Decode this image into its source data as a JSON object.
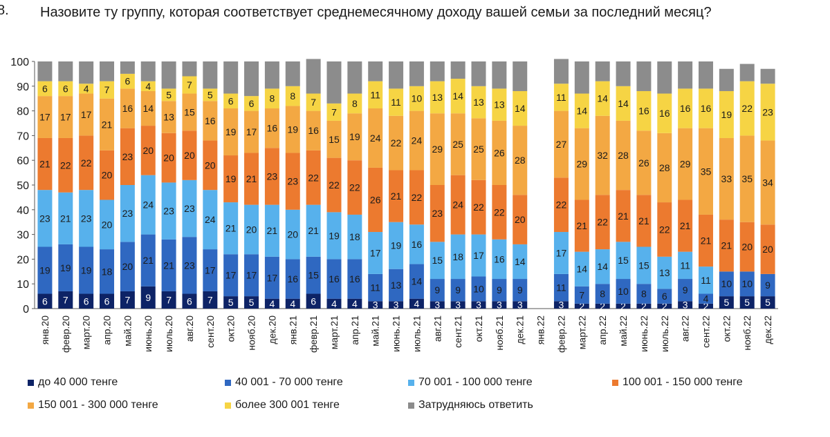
{
  "title": {
    "number": "8.",
    "text": "Назовите ту группу, которая соответствует среднемесячному доходу вашей семьи за последний месяц?"
  },
  "chart_data": {
    "type": "bar",
    "stacked": true,
    "ylim": [
      0,
      100
    ],
    "yticks": [
      0,
      10,
      20,
      30,
      40,
      50,
      60,
      70,
      80,
      90,
      100
    ],
    "grid": false,
    "legend_position": "bottom",
    "categories": [
      "янв.20",
      "февр.20",
      "март.20",
      "апр.20",
      "май.20",
      "июнь.20",
      "июль.20",
      "авг.20",
      "сент.20",
      "окт.20",
      "нояб.20",
      "дек.20",
      "янв.21",
      "февр.21",
      "март.21",
      "апр.21",
      "май.21",
      "июнь.21",
      "июль.21",
      "авг.21",
      "сент.21",
      "окт.21",
      "нояб.21",
      "дек.21",
      "янв.22",
      "февр.22",
      "март.22",
      "апр.22",
      "май.22",
      "июнь.22",
      "июль.22",
      "авг.22",
      "сент.22",
      "окт.22",
      "нояб.22",
      "дек.22"
    ],
    "series": [
      {
        "name": "до 40 000 тенге",
        "color": "#0d2366",
        "label_color": "#ffffff",
        "values": [
          6,
          7,
          6,
          6,
          7,
          9,
          7,
          6,
          7,
          5,
          5,
          4,
          4,
          6,
          4,
          4,
          3,
          3,
          4,
          3,
          3,
          3,
          3,
          3,
          null,
          3,
          2,
          2,
          2,
          2,
          2,
          3,
          2,
          5,
          5,
          5
        ]
      },
      {
        "name": "40 001 - 70 000 тенге",
        "color": "#2f68c1",
        "label_color": "#1a1a1a",
        "values": [
          19,
          19,
          19,
          18,
          20,
          21,
          21,
          23,
          17,
          17,
          17,
          17,
          16,
          15,
          16,
          16,
          11,
          13,
          14,
          9,
          9,
          10,
          9,
          9,
          null,
          11,
          7,
          8,
          10,
          8,
          6,
          9,
          4,
          10,
          10,
          9
        ]
      },
      {
        "name": "70 001 - 100 000 тенге",
        "color": "#57b1ec",
        "label_color": "#1a1a1a",
        "values": [
          23,
          21,
          23,
          20,
          23,
          24,
          23,
          23,
          24,
          21,
          20,
          21,
          20,
          21,
          19,
          18,
          17,
          19,
          16,
          15,
          18,
          17,
          16,
          14,
          null,
          17,
          14,
          14,
          15,
          15,
          13,
          11,
          11,
          null,
          null,
          null
        ]
      },
      {
        "name": "100 001 - 150 000 тенге",
        "color": "#ec7a2f",
        "label_color": "#1a1a1a",
        "values": [
          21,
          22,
          22,
          20,
          23,
          20,
          20,
          20,
          20,
          19,
          21,
          23,
          23,
          22,
          22,
          22,
          26,
          21,
          22,
          23,
          24,
          22,
          22,
          20,
          null,
          22,
          21,
          22,
          21,
          21,
          22,
          21,
          21,
          21,
          20,
          20
        ]
      },
      {
        "name": "150 001 - 300 000 тенге",
        "color": "#f3a843",
        "label_color": "#1a1a1a",
        "values": [
          17,
          17,
          17,
          21,
          16,
          14,
          13,
          15,
          16,
          19,
          17,
          16,
          19,
          16,
          15,
          19,
          24,
          22,
          24,
          29,
          25,
          25,
          26,
          28,
          null,
          27,
          29,
          32,
          28,
          26,
          28,
          29,
          35,
          33,
          35,
          34
        ]
      },
      {
        "name": "более 300 001 тенге",
        "color": "#f6d444",
        "label_color": "#1a1a1a",
        "values": [
          6,
          6,
          4,
          7,
          6,
          4,
          5,
          7,
          5,
          6,
          6,
          8,
          8,
          7,
          7,
          8,
          11,
          11,
          10,
          13,
          14,
          13,
          13,
          14,
          null,
          11,
          14,
          14,
          14,
          16,
          16,
          16,
          16,
          19,
          22,
          23
        ]
      },
      {
        "name": "Затрудняюсь ответить",
        "color": "#8c8c8c",
        "label_color": "#1a1a1a",
        "values": [
          8,
          8,
          9,
          8,
          5,
          8,
          11,
          6,
          11,
          13,
          14,
          11,
          10,
          14,
          17,
          13,
          8,
          11,
          10,
          8,
          7,
          10,
          11,
          12,
          null,
          10,
          13,
          8,
          10,
          12,
          13,
          11,
          11,
          9,
          7,
          6
        ]
      }
    ],
    "hidden_labels": [
      [
        0,
        6
      ],
      [
        1,
        6
      ],
      [
        2,
        6
      ],
      [
        3,
        6
      ],
      [
        4,
        6
      ],
      [
        5,
        6
      ],
      [
        6,
        6
      ],
      [
        7,
        6
      ],
      [
        8,
        6
      ],
      [
        9,
        6
      ],
      [
        10,
        6
      ],
      [
        11,
        6
      ],
      [
        12,
        6
      ],
      [
        13,
        6
      ],
      [
        14,
        6
      ],
      [
        15,
        6
      ],
      [
        16,
        6
      ],
      [
        17,
        6
      ],
      [
        18,
        6
      ],
      [
        19,
        6
      ],
      [
        20,
        6
      ],
      [
        21,
        6
      ],
      [
        22,
        6
      ],
      [
        23,
        6
      ],
      [
        25,
        6
      ],
      [
        26,
        6
      ],
      [
        27,
        6
      ],
      [
        28,
        6
      ],
      [
        29,
        6
      ],
      [
        30,
        6
      ],
      [
        31,
        6
      ],
      [
        32,
        6
      ],
      [
        33,
        6
      ],
      [
        34,
        6
      ],
      [
        35,
        6
      ]
    ]
  }
}
